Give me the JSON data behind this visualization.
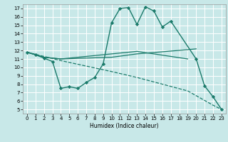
{
  "xlabel": "Humidex (Indice chaleur)",
  "background_color": "#c8e8e8",
  "grid_color": "#ffffff",
  "line_color": "#1a7a6a",
  "xlim": [
    -0.5,
    23.5
  ],
  "ylim": [
    4.5,
    17.5
  ],
  "x_ticks": [
    0,
    1,
    2,
    3,
    4,
    5,
    6,
    7,
    8,
    9,
    10,
    11,
    12,
    13,
    14,
    15,
    16,
    17,
    18,
    19,
    20,
    21,
    22,
    23
  ],
  "y_ticks": [
    5,
    6,
    7,
    8,
    9,
    10,
    11,
    12,
    13,
    14,
    15,
    16,
    17
  ],
  "series": [
    {
      "x": [
        0,
        1,
        2,
        3,
        4,
        5,
        6,
        7,
        8,
        9,
        10,
        11,
        12,
        13,
        14,
        15,
        16,
        17,
        20,
        21,
        22,
        23
      ],
      "y": [
        11.8,
        11.5,
        11.1,
        10.7,
        7.5,
        7.7,
        7.5,
        8.2,
        8.8,
        10.4,
        15.3,
        17.0,
        17.1,
        15.1,
        17.2,
        16.7,
        14.8,
        15.5,
        11.0,
        7.8,
        6.5,
        5.0
      ],
      "marker": "D",
      "markersize": 2.2,
      "linewidth": 1.0,
      "dashed": false
    },
    {
      "x": [
        0,
        2,
        4,
        10,
        13,
        19,
        20
      ],
      "y": [
        11.8,
        11.2,
        11.0,
        11.2,
        11.6,
        12.1,
        12.2
      ],
      "marker": null,
      "markersize": 0,
      "linewidth": 0.9,
      "dashed": false
    },
    {
      "x": [
        0,
        2,
        4,
        10,
        13,
        19
      ],
      "y": [
        11.8,
        11.2,
        11.0,
        11.6,
        11.9,
        11.0
      ],
      "marker": null,
      "markersize": 0,
      "linewidth": 0.9,
      "dashed": false
    },
    {
      "x": [
        0,
        4,
        10,
        13,
        19,
        22,
        23
      ],
      "y": [
        11.8,
        10.8,
        9.5,
        8.8,
        7.2,
        5.5,
        5.0
      ],
      "marker": null,
      "markersize": 0,
      "linewidth": 0.9,
      "dashed": true
    }
  ]
}
